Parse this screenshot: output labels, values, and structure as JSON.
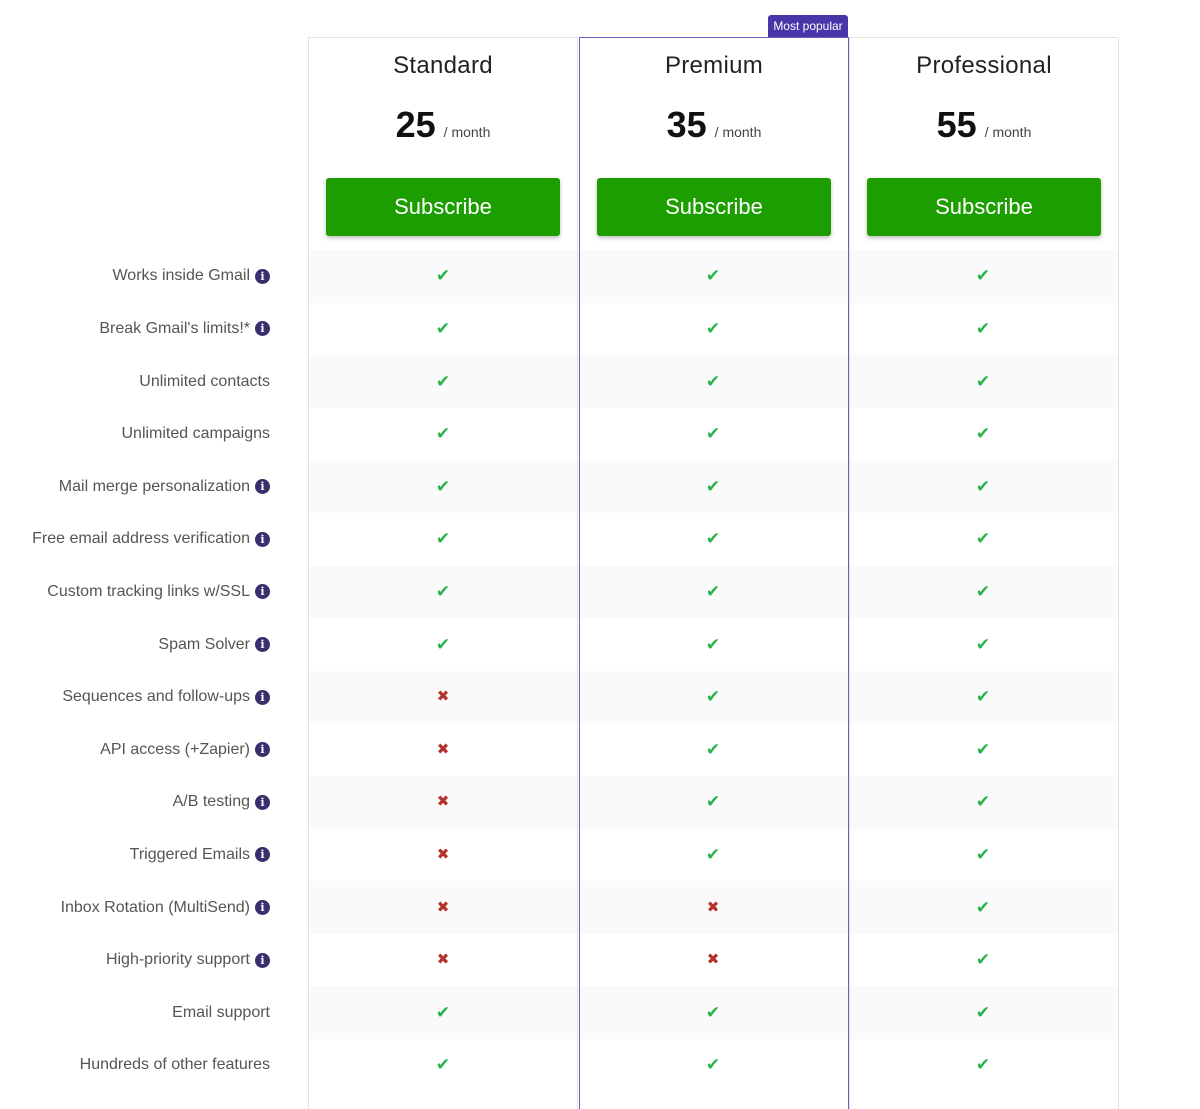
{
  "badge": "Most popular",
  "plans": [
    {
      "name": "Standard",
      "price": "25",
      "period": "/ month",
      "button": "Subscribe"
    },
    {
      "name": "Premium",
      "price": "35",
      "period": "/ month",
      "button": "Subscribe"
    },
    {
      "name": "Professional",
      "price": "55",
      "period": "/ month",
      "button": "Subscribe"
    }
  ],
  "features": [
    {
      "label": "Works inside Gmail",
      "info": true,
      "values": [
        "yes",
        "yes",
        "yes"
      ]
    },
    {
      "label": "Break Gmail's limits!*",
      "info": true,
      "values": [
        "yes",
        "yes",
        "yes"
      ]
    },
    {
      "label": "Unlimited contacts",
      "info": false,
      "values": [
        "yes",
        "yes",
        "yes"
      ]
    },
    {
      "label": "Unlimited campaigns",
      "info": false,
      "values": [
        "yes",
        "yes",
        "yes"
      ]
    },
    {
      "label": "Mail merge personalization",
      "info": true,
      "values": [
        "yes",
        "yes",
        "yes"
      ]
    },
    {
      "label": "Free email address verification",
      "info": true,
      "values": [
        "yes",
        "yes",
        "yes"
      ]
    },
    {
      "label": "Custom tracking links w/SSL",
      "info": true,
      "values": [
        "yes",
        "yes",
        "yes"
      ]
    },
    {
      "label": "Spam Solver",
      "info": true,
      "values": [
        "yes",
        "yes",
        "yes"
      ]
    },
    {
      "label": "Sequences and follow-ups",
      "info": true,
      "values": [
        "no",
        "yes",
        "yes"
      ]
    },
    {
      "label": "API access (+Zapier)",
      "info": true,
      "values": [
        "no",
        "yes",
        "yes"
      ]
    },
    {
      "label": "A/B testing",
      "info": true,
      "values": [
        "no",
        "yes",
        "yes"
      ]
    },
    {
      "label": "Triggered Emails",
      "info": true,
      "values": [
        "no",
        "yes",
        "yes"
      ]
    },
    {
      "label": "Inbox Rotation (MultiSend)",
      "info": true,
      "values": [
        "no",
        "no",
        "yes"
      ]
    },
    {
      "label": "High-priority support",
      "info": true,
      "values": [
        "no",
        "no",
        "yes"
      ]
    },
    {
      "label": "Email support",
      "info": false,
      "values": [
        "yes",
        "yes",
        "yes"
      ]
    },
    {
      "label": "Hundreds of other features",
      "info": false,
      "values": [
        "yes",
        "yes",
        "yes"
      ]
    }
  ],
  "icons": {
    "yes": "check-icon",
    "no": "cross-icon",
    "info": "info-icon"
  },
  "colors": {
    "accent": "#1d9e00",
    "badge": "#4a35a8",
    "check": "#2ab34a",
    "cross": "#b5312b"
  }
}
